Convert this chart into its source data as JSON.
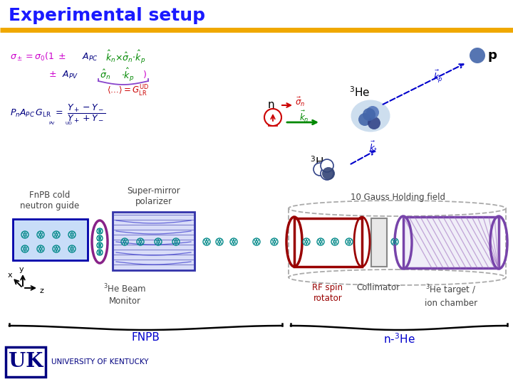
{
  "title": "Experimental setup",
  "title_color": "#1a1aff",
  "title_fontsize": 18,
  "title_fontweight": "bold",
  "bg_color": "#ffffff",
  "gold_line_color": "#f0a800",
  "fig_width": 7.2,
  "fig_height": 5.4,
  "dpi": 100,
  "labels": {
    "fnpb": "FnPB cold\nneutron guide",
    "supermirror": "Super-mirror\npolarizer",
    "he3_beam": "$^3$He Beam\nMonitor",
    "rf_spin": "RF spin\nrotator",
    "collimator": "Collimator",
    "he3_target": "$^3$He target /\nion chamber",
    "gauss_field": "10 Gauss Holding field",
    "fnpb_brace": "FNPB",
    "nhe3_brace": "n-$^3$He",
    "axis_y": "y",
    "axis_x": "x",
    "axis_z": "z"
  }
}
